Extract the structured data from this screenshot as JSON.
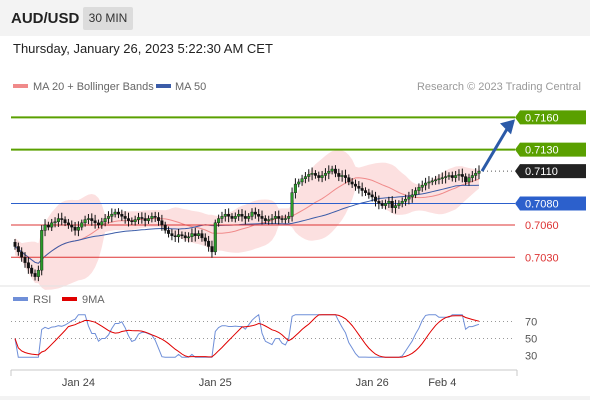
{
  "header": {
    "symbol": "AUD/USD",
    "timeframe": "30 MIN",
    "timestamp": "Thursday, January 26, 2023 5:22:30 AM CET"
  },
  "legend": {
    "ma20": "MA 20 + Bollinger Bands",
    "ma50": "MA 50",
    "credit": "Research © 2023 Trading Central",
    "colors": {
      "ma20": "#f08a8a",
      "ma50": "#3b5ca8"
    }
  },
  "rsi_legend": {
    "rsi": "RSI",
    "ma9": "9MA",
    "colors": {
      "rsi": "#6f8fd8",
      "ma9": "#e00000"
    }
  },
  "chart_data": {
    "type": "candlestick",
    "price_range": [
      0.7007,
      0.7178
    ],
    "levels": [
      {
        "value": 0.716,
        "label": "0.7160",
        "kind": "resistance",
        "color": "#5aa000"
      },
      {
        "value": 0.713,
        "label": "0.7130",
        "kind": "resistance",
        "color": "#5aa000"
      },
      {
        "value": 0.708,
        "label": "0.7080",
        "kind": "pivot",
        "color": "#2c60cc"
      },
      {
        "value": 0.706,
        "label": "0.7060",
        "kind": "support",
        "color": "#dd3333"
      },
      {
        "value": 0.703,
        "label": "0.7030",
        "kind": "support",
        "color": "#dd3333"
      }
    ],
    "last_price": {
      "value": 0.711,
      "label": "0.7110"
    },
    "closes": [
      0.704,
      0.7035,
      0.703,
      0.7025,
      0.702,
      0.7015,
      0.7012,
      0.7018,
      0.7055,
      0.706,
      0.7058,
      0.7062,
      0.7063,
      0.7066,
      0.7065,
      0.7062,
      0.706,
      0.7058,
      0.7055,
      0.7058,
      0.7062,
      0.7065,
      0.7066,
      0.7064,
      0.7062,
      0.706,
      0.7063,
      0.7066,
      0.7068,
      0.707,
      0.7072,
      0.707,
      0.7068,
      0.7066,
      0.7064,
      0.7063,
      0.7065,
      0.7067,
      0.7066,
      0.7064,
      0.7066,
      0.7068,
      0.7067,
      0.7064,
      0.706,
      0.7055,
      0.7052,
      0.705,
      0.7049,
      0.7051,
      0.705,
      0.7048,
      0.7049,
      0.7052,
      0.705,
      0.7052,
      0.7048,
      0.7045,
      0.704,
      0.7035,
      0.7062,
      0.7066,
      0.7068,
      0.707,
      0.7068,
      0.7066,
      0.7068,
      0.707,
      0.7068,
      0.7066,
      0.7068,
      0.7072,
      0.707,
      0.7068,
      0.7066,
      0.7064,
      0.7065,
      0.7066,
      0.7068,
      0.7066,
      0.7065,
      0.7066,
      0.7068,
      0.709,
      0.7098,
      0.71,
      0.7103,
      0.7105,
      0.7107,
      0.7108,
      0.7106,
      0.7104,
      0.7106,
      0.7108,
      0.711,
      0.7112,
      0.7108,
      0.7105,
      0.7106,
      0.7104,
      0.71,
      0.7098,
      0.7096,
      0.7094,
      0.7092,
      0.709,
      0.7088,
      0.7086,
      0.7082,
      0.708,
      0.7078,
      0.708,
      0.7082,
      0.7076,
      0.7078,
      0.708,
      0.7082,
      0.7084,
      0.7086,
      0.7088,
      0.7092,
      0.7095,
      0.7097,
      0.7099,
      0.71,
      0.7101,
      0.7102,
      0.7103,
      0.7104,
      0.7105,
      0.7106,
      0.7104,
      0.7106,
      0.7107,
      0.7105,
      0.71,
      0.7104,
      0.7106,
      0.7108,
      0.711
    ],
    "forecast_arrow": {
      "from": 0.711,
      "to": 0.716
    },
    "rsi_levels": [
      {
        "value": 70,
        "label": "70"
      },
      {
        "value": 50,
        "label": "50"
      },
      {
        "value": 30,
        "label": "30"
      }
    ],
    "rsi_range": [
      20,
      80
    ],
    "x_labels": [
      {
        "label": "Jan 24",
        "index": 19
      },
      {
        "label": "Jan 25",
        "index": 60
      },
      {
        "label": "Jan 26",
        "index": 107
      },
      {
        "label": "Feb 4",
        "index": 128
      }
    ]
  }
}
